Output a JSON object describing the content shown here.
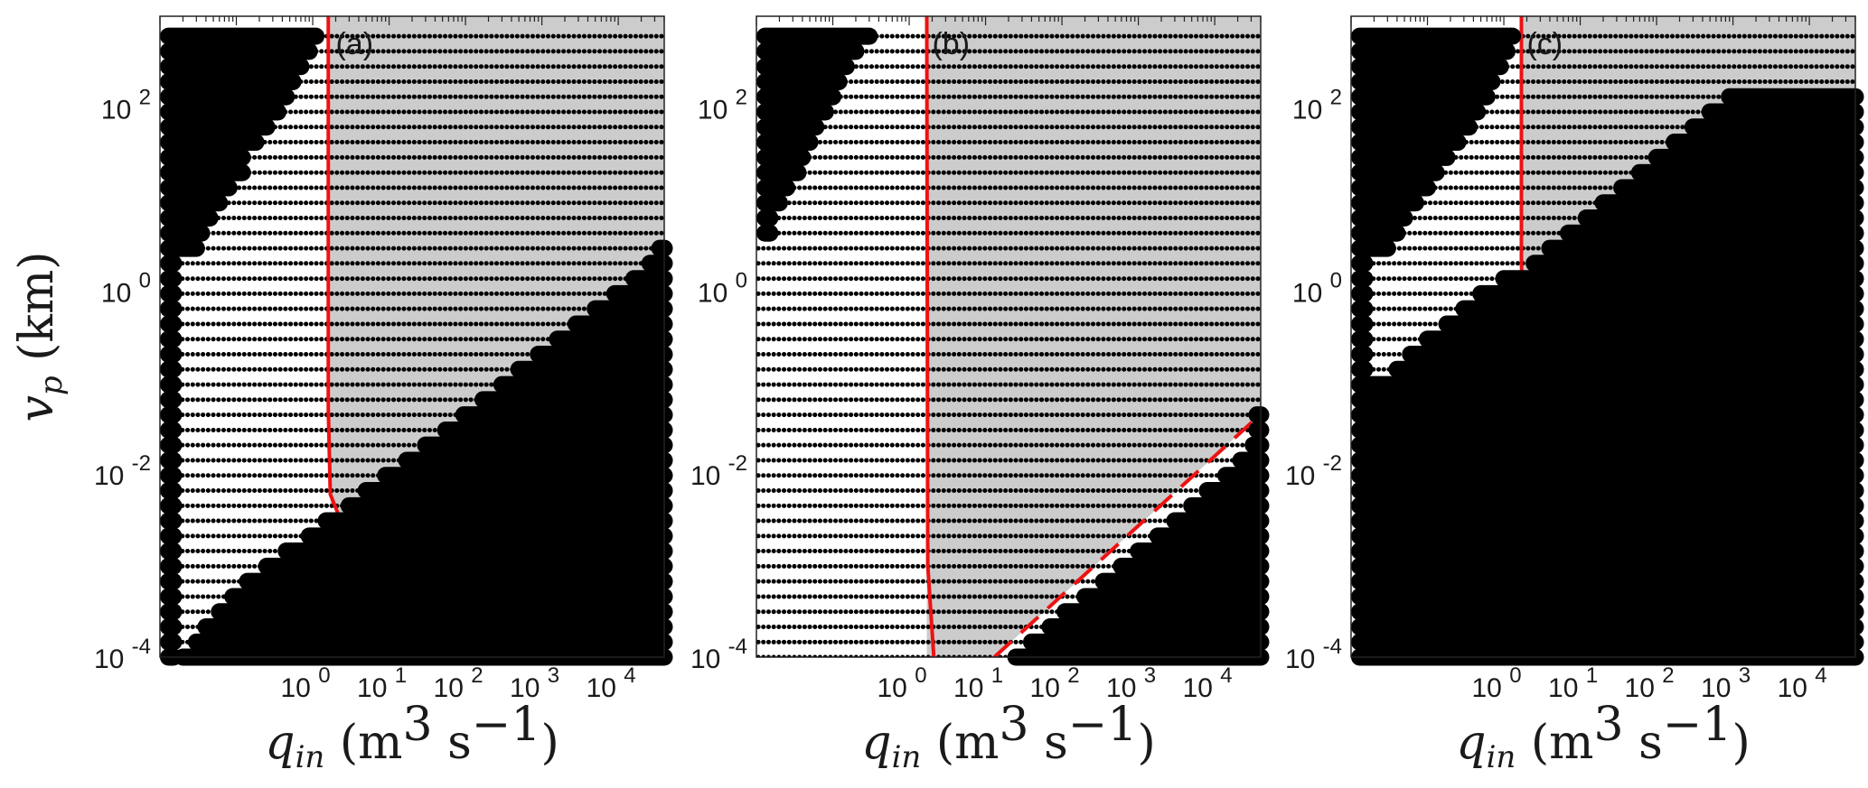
{
  "colors": {
    "region": "#cccccc",
    "marker": "#000000",
    "curve": "#ee1111",
    "axis": "#222222"
  },
  "chart_data": [
    {
      "type": "scatter",
      "panel_label": "(a)",
      "xlabel": "q_in (m^3 s^-1)",
      "ylabel": "v_p (km)",
      "x_scale": "log",
      "y_scale": "log",
      "xlim": [
        0.01,
        40000
      ],
      "ylim": [
        0.0001,
        1000
      ],
      "x_ticks": [
        {
          "v": 1,
          "label": "10^0"
        },
        {
          "v": 10,
          "label": "10^1"
        },
        {
          "v": 100,
          "label": "10^2"
        },
        {
          "v": 1000,
          "label": "10^3"
        },
        {
          "v": 10000,
          "label": "10^4"
        }
      ],
      "y_ticks": [
        {
          "v": 0.0001,
          "label": "10^-4"
        },
        {
          "v": 0.01,
          "label": "10^-2"
        },
        {
          "v": 1,
          "label": "10^0"
        },
        {
          "v": 100,
          "label": "10^2"
        }
      ],
      "grid": false,
      "rows_vp": [
        0.0001,
        0.000146,
        0.000214,
        0.000313,
        0.000458,
        0.000671,
        0.000982,
        0.00144,
        0.0021,
        0.00308,
        0.0045,
        0.00659,
        0.00965,
        0.0141,
        0.0207,
        0.0302,
        0.0443,
        0.0648,
        0.0948,
        0.139,
        0.203,
        0.297,
        0.435,
        0.637,
        0.932,
        1.36,
        2,
        2.92,
        4.28,
        6.26,
        9.16,
        13.4,
        19.6,
        28.7,
        42.1,
        61.6,
        90.1,
        132,
        193,
        282,
        414,
        605
      ],
      "left_band_qmax": [
        0.015,
        0.015,
        0.015,
        0.015,
        0.015,
        0.015,
        0.015,
        0.015,
        0.015,
        0.015,
        0.015,
        0.015,
        0.015,
        0.015,
        0.015,
        0.015,
        0.015,
        0.015,
        0.015,
        0.015,
        0.015,
        0.015,
        0.015,
        0.015,
        0.015,
        0.015,
        0.015,
        0.03,
        0.035,
        0.045,
        0.06,
        0.08,
        0.12,
        0.12,
        0.18,
        0.25,
        0.35,
        0.45,
        0.55,
        0.7,
        0.9,
        1.1
      ],
      "right_band_qmin": [
        0.02,
        0.03,
        0.04,
        0.06,
        0.09,
        0.14,
        0.25,
        0.45,
        0.9,
        1.5,
        3,
        5,
        9,
        17,
        30,
        55,
        95,
        170,
        300,
        500,
        900,
        1600,
        2800,
        5000,
        9000,
        16000,
        26000,
        35000,
        null,
        null,
        null,
        null,
        null,
        null,
        null,
        null,
        null,
        null,
        null,
        null,
        null,
        null
      ],
      "shaded_region": {
        "lower_vp": [
          {
            "q": 1.7,
            "v": 0.0045
          },
          {
            "q": 4,
            "v": 0.0028
          },
          {
            "q": 40000,
            "v": 1.5
          }
        ],
        "q_left": 1.7
      },
      "solid_curve": [
        {
          "q": 1.6,
          "v": 1000
        },
        {
          "q": 1.6,
          "v": 0.05
        },
        {
          "q": 1.7,
          "v": 0.006
        },
        {
          "q": 2.2,
          "v": 0.0035
        },
        {
          "q": 3.5,
          "v": 0.0025
        },
        {
          "q": 6,
          "v": 0.0026
        }
      ],
      "dashed_curve": [
        {
          "q": 6,
          "v": 0.0026
        },
        {
          "q": 40000,
          "v": 1.2
        }
      ]
    },
    {
      "type": "scatter",
      "panel_label": "(b)",
      "xlabel": "q_in (m^3 s^-1)",
      "ylabel": "",
      "x_scale": "log",
      "y_scale": "log",
      "xlim": [
        0.01,
        40000
      ],
      "ylim": [
        0.0001,
        1000
      ],
      "x_ticks": [
        {
          "v": 1,
          "label": "10^0"
        },
        {
          "v": 10,
          "label": "10^1"
        },
        {
          "v": 100,
          "label": "10^2"
        },
        {
          "v": 1000,
          "label": "10^3"
        },
        {
          "v": 10000,
          "label": "10^4"
        }
      ],
      "y_ticks": [
        {
          "v": 0.0001,
          "label": "10^-4"
        },
        {
          "v": 0.01,
          "label": "10^-2"
        },
        {
          "v": 1,
          "label": "10^0"
        },
        {
          "v": 100,
          "label": "10^2"
        }
      ],
      "grid": false,
      "rows_vp": [
        0.0001,
        0.000146,
        0.000214,
        0.000313,
        0.000458,
        0.000671,
        0.000982,
        0.00144,
        0.0021,
        0.00308,
        0.0045,
        0.00659,
        0.00965,
        0.0141,
        0.0207,
        0.0302,
        0.0443,
        0.0648,
        0.0948,
        0.139,
        0.203,
        0.297,
        0.435,
        0.637,
        0.932,
        1.36,
        2,
        2.92,
        4.28,
        6.26,
        9.16,
        13.4,
        19.6,
        28.7,
        42.1,
        61.6,
        90.1,
        132,
        193,
        282,
        414,
        605
      ],
      "left_band_qmax": [
        null,
        null,
        null,
        null,
        null,
        null,
        null,
        null,
        null,
        null,
        null,
        null,
        null,
        null,
        null,
        null,
        null,
        null,
        null,
        null,
        null,
        null,
        null,
        null,
        null,
        null,
        null,
        null,
        0.015,
        0.015,
        0.02,
        0.025,
        0.035,
        0.04,
        0.05,
        0.06,
        0.08,
        0.1,
        0.12,
        0.15,
        0.2,
        0.3
      ],
      "right_band_qmin": [
        25,
        40,
        70,
        110,
        200,
        350,
        600,
        1000,
        1800,
        3000,
        5000,
        8000,
        14000,
        22000,
        32000,
        40000,
        45000,
        null,
        null,
        null,
        null,
        null,
        null,
        null,
        null,
        null,
        null,
        null,
        null,
        null,
        null,
        null,
        null,
        null,
        null,
        null,
        null,
        null,
        null,
        null,
        null,
        null
      ],
      "shaded_region": {
        "lower_vp": [
          {
            "q": 13,
            "v": 0.0001
          },
          {
            "q": 40000,
            "v": 0.045
          }
        ],
        "q_left": 1.7
      },
      "solid_curve": [
        {
          "q": 1.7,
          "v": 1000
        },
        {
          "q": 1.75,
          "v": 0.001
        },
        {
          "q": 2.1,
          "v": 0.0001
        }
      ],
      "dashed_curve": [
        {
          "q": 13,
          "v": 0.0001
        },
        {
          "q": 40000,
          "v": 0.045
        }
      ]
    },
    {
      "type": "scatter",
      "panel_label": "(c)",
      "xlabel": "q_in (m^3 s^-1)",
      "ylabel": "",
      "x_scale": "log",
      "y_scale": "log",
      "xlim": [
        0.01,
        40000
      ],
      "ylim": [
        0.0001,
        1000
      ],
      "x_ticks": [
        {
          "v": 1,
          "label": "10^0"
        },
        {
          "v": 10,
          "label": "10^1"
        },
        {
          "v": 100,
          "label": "10^2"
        },
        {
          "v": 1000,
          "label": "10^3"
        },
        {
          "v": 10000,
          "label": "10^4"
        }
      ],
      "y_ticks": [
        {
          "v": 0.0001,
          "label": "10^-4"
        },
        {
          "v": 0.01,
          "label": "10^-2"
        },
        {
          "v": 1,
          "label": "10^0"
        },
        {
          "v": 100,
          "label": "10^2"
        }
      ],
      "grid": false,
      "rows_vp": [
        0.0001,
        0.000146,
        0.000214,
        0.000313,
        0.000458,
        0.000671,
        0.000982,
        0.00144,
        0.0021,
        0.00308,
        0.0045,
        0.00659,
        0.00965,
        0.0141,
        0.0207,
        0.0302,
        0.0443,
        0.0648,
        0.0948,
        0.139,
        0.203,
        0.297,
        0.435,
        0.637,
        0.932,
        1.36,
        2,
        2.92,
        4.28,
        6.26,
        9.16,
        13.4,
        19.6,
        28.7,
        42.1,
        61.6,
        90.1,
        132,
        193,
        282,
        414,
        605
      ],
      "left_band_qmax": [
        0.015,
        0.015,
        0.015,
        0.015,
        0.015,
        0.015,
        0.015,
        0.015,
        0.015,
        0.015,
        0.015,
        0.015,
        0.015,
        0.015,
        0.015,
        0.015,
        0.015,
        0.015,
        0.015,
        0.015,
        0.015,
        0.015,
        0.015,
        0.015,
        0.015,
        0.015,
        0.015,
        0.03,
        0.04,
        0.05,
        0.07,
        0.1,
        0.13,
        0.18,
        0.25,
        0.35,
        0.45,
        0.6,
        0.7,
        0.9,
        1.1,
        1.3
      ],
      "right_band_qmin": [
        0.015,
        0.015,
        0.015,
        0.015,
        0.015,
        0.015,
        0.015,
        0.015,
        0.015,
        0.015,
        0.015,
        0.015,
        0.015,
        0.015,
        0.015,
        0.015,
        0.015,
        0.015,
        0.015,
        0.04,
        0.06,
        0.1,
        0.18,
        0.3,
        0.5,
        1,
        2.5,
        4,
        7,
        12,
        20,
        35,
        60,
        100,
        170,
        300,
        500,
        900,
        null,
        null,
        null,
        null
      ],
      "shaded_region": {
        "lower_vp": [
          {
            "q": 1.8,
            "v": 0.15
          },
          {
            "q": 3,
            "v": 0.075
          },
          {
            "q": 6,
            "v": 0.07
          },
          {
            "q": 40000,
            "v": 80
          }
        ],
        "q_left": 1.8
      },
      "solid_curve": [
        {
          "q": 1.7,
          "v": 1000
        },
        {
          "q": 1.7,
          "v": 2
        },
        {
          "q": 1.9,
          "v": 0.2
        },
        {
          "q": 2.5,
          "v": 0.09
        },
        {
          "q": 4,
          "v": 0.072
        },
        {
          "q": 7,
          "v": 0.075
        }
      ],
      "dashed_curve": [
        {
          "q": 7,
          "v": 0.075
        },
        {
          "q": 40000,
          "v": 70
        }
      ]
    }
  ]
}
